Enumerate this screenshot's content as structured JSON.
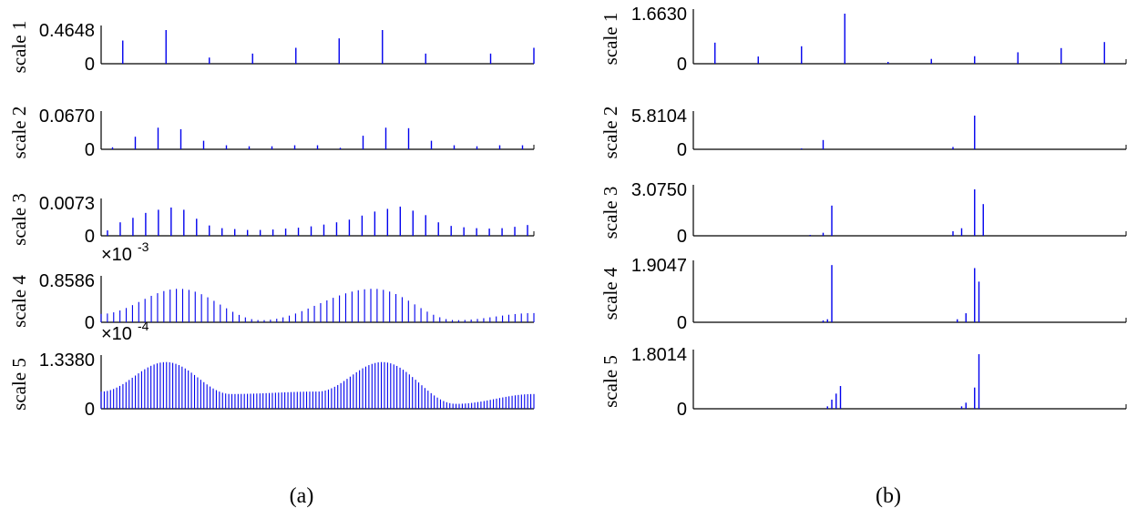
{
  "chart_data": [
    {
      "type": "bar",
      "panel": "a",
      "ylabel": "scale 1",
      "ymax_label": "0.4648",
      "ymin_label": "0",
      "ylim": [
        0,
        0.4648
      ],
      "series": [
        {
          "values": [
            0.32,
            0.4648,
            0.085,
            0.14,
            0.22,
            0.35,
            0.4648,
            0.14,
            0.14,
            0.22
          ]
        }
      ]
    },
    {
      "type": "bar",
      "panel": "a",
      "ylabel": "scale 2",
      "ymax_label": "0.0670",
      "ymin_label": "0",
      "ylim": [
        0,
        0.067
      ],
      "series": [
        {
          "values": [
            0.004,
            0.025,
            0.043,
            0.04,
            0.017,
            0.008,
            0.006,
            0.006,
            0.008,
            0.008,
            0.003,
            0.027,
            0.043,
            0.042,
            0.017,
            0.008,
            0.006,
            0.008,
            0.008
          ]
        }
      ]
    },
    {
      "type": "bar",
      "panel": "a",
      "ylabel": "scale 3",
      "ymax_label": "0.0073",
      "ymin_label": "0",
      "ylim": [
        0,
        0.0073
      ],
      "series": [
        {
          "values": [
            0.0012,
            0.003,
            0.004,
            0.0051,
            0.0058,
            0.0063,
            0.0058,
            0.0038,
            0.0023,
            0.0017,
            0.0015,
            0.0013,
            0.0013,
            0.0014,
            0.0016,
            0.0018,
            0.0021,
            0.0025,
            0.003,
            0.0036,
            0.0045,
            0.0054,
            0.006,
            0.0065,
            0.0056,
            0.0046,
            0.003,
            0.0022,
            0.0019,
            0.0017,
            0.0016,
            0.0017,
            0.002,
            0.0024
          ]
        }
      ]
    },
    {
      "type": "bar",
      "panel": "a",
      "ylabel": "scale 4",
      "exponent_label": "×10",
      "exponent_power": "-3",
      "ymax_label": "0.8586",
      "ymin_label": "0",
      "ylim": [
        0,
        0.8586
      ],
      "profile": [
        [
          0,
          0.2
        ],
        [
          0.18,
          0.8
        ],
        [
          0.37,
          0.05
        ],
        [
          0.63,
          0.8
        ],
        [
          0.82,
          0.05
        ],
        [
          1,
          0.22
        ]
      ],
      "count": 70
    },
    {
      "type": "bar",
      "panel": "a",
      "ylabel": "scale 5",
      "exponent_label": "×10",
      "exponent_power": "-4",
      "ymax_label": "1.3380",
      "ymin_label": "0",
      "ylim": [
        0,
        1.338
      ],
      "profile": [
        [
          0,
          0.35
        ],
        [
          0.15,
          0.95
        ],
        [
          0.3,
          0.3
        ],
        [
          0.5,
          0.35
        ],
        [
          0.65,
          0.95
        ],
        [
          0.82,
          0.1
        ],
        [
          1,
          0.3
        ]
      ],
      "count": 140
    },
    {
      "type": "bar",
      "panel": "b",
      "ylabel": "scale 1",
      "ymax_label": "1.6630",
      "ymin_label": "0",
      "ylim": [
        0,
        1.663
      ],
      "series": [
        {
          "values": [
            0.7,
            0.24,
            0.58,
            1.663,
            0.06,
            0.16,
            0.25,
            0.38,
            0.52,
            0.72
          ]
        }
      ]
    },
    {
      "type": "bar",
      "panel": "b",
      "ylabel": "scale 2",
      "ymax_label": "5.8104",
      "ymin_label": "0",
      "ylim": [
        0,
        5.8104
      ],
      "series": [
        {
          "values": [
            0.05,
            1.6,
            0.4,
            5.81
          ]
        }
      ]
    },
    {
      "type": "bar",
      "panel": "b",
      "ylabel": "scale 3",
      "ymax_label": "3.0750",
      "ymin_label": "0",
      "ylim": [
        0,
        3.075
      ],
      "series": [
        {
          "values": [
            0.05,
            0.2,
            2.0,
            0.3,
            0.5,
            3.075,
            2.1
          ]
        }
      ]
    },
    {
      "type": "bar",
      "panel": "b",
      "ylabel": "scale 4",
      "ymax_label": "1.9047",
      "ymin_label": "0",
      "ylim": [
        0,
        1.9047
      ],
      "series": [
        {
          "values": [
            0.06,
            0.1,
            1.9,
            0.1,
            0.3,
            1.8,
            1.35
          ]
        }
      ]
    },
    {
      "type": "bar",
      "panel": "b",
      "ylabel": "scale 5",
      "ymax_label": "1.8014",
      "ymin_label": "0",
      "ylim": [
        0,
        1.8014
      ],
      "series": [
        {
          "values": [
            0.08,
            0.3,
            0.5,
            0.75,
            0.08,
            0.2,
            0.7,
            1.8
          ]
        }
      ]
    }
  ],
  "captions": {
    "left": "(a)",
    "right": "(b)"
  },
  "colors": {
    "stem": "#0000ee",
    "axis": "#000000"
  }
}
